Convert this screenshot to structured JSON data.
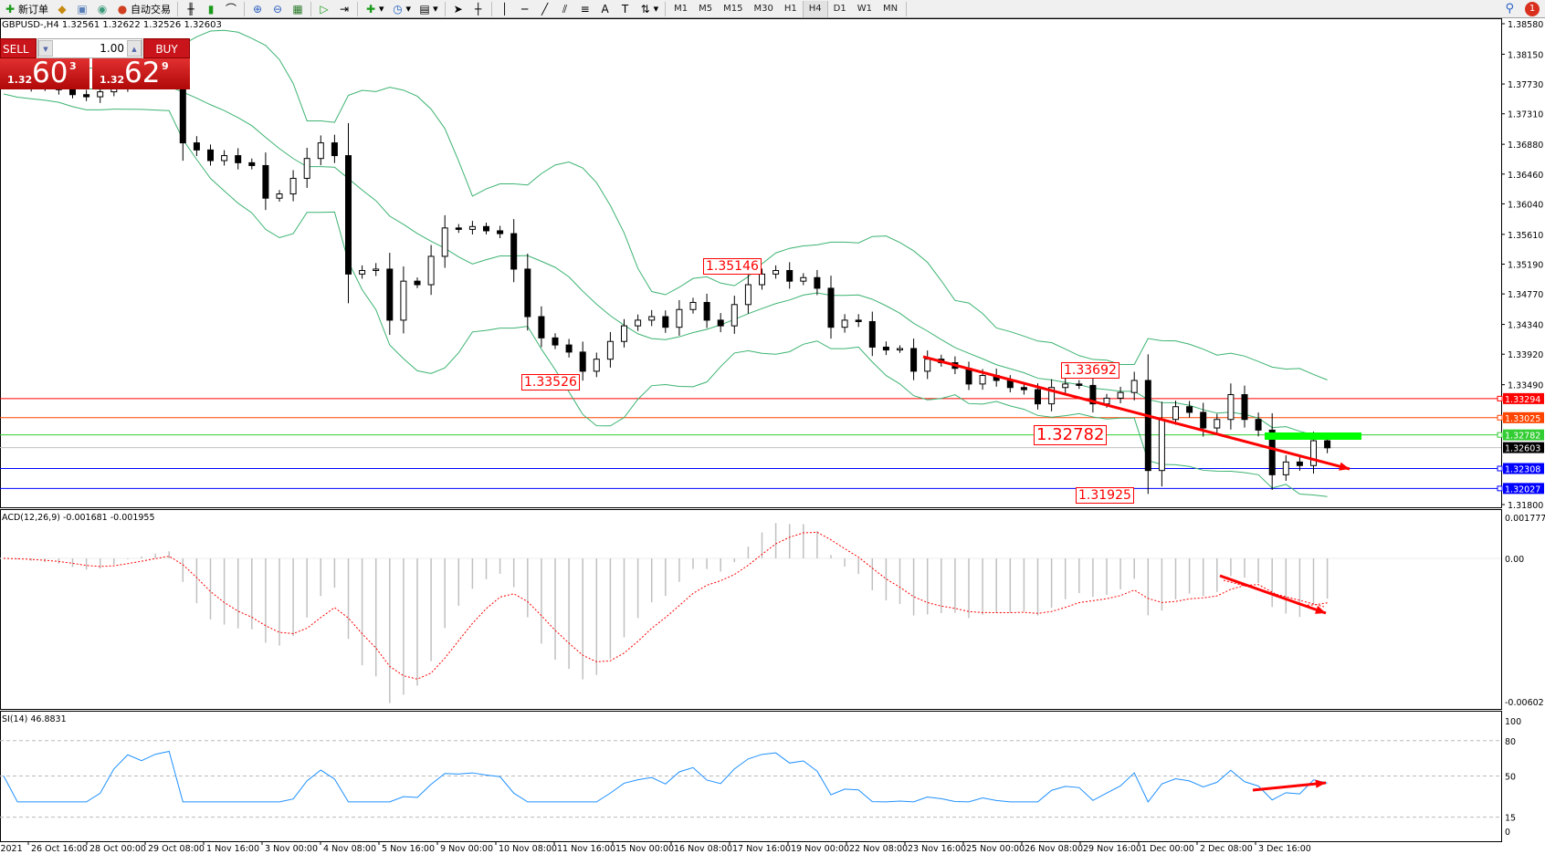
{
  "toolbar": {
    "new_order": "新订单",
    "auto_trading": "自动交易",
    "timeframes": [
      "M1",
      "M5",
      "M15",
      "M30",
      "H1",
      "H4",
      "D1",
      "W1",
      "MN"
    ],
    "active_timeframe": "H4",
    "notification_count": "1"
  },
  "chart": {
    "header": "GBPUSD-,H4  1.32561 1.32622 1.32526 1.32603",
    "one_click": {
      "sell_label": "SELL",
      "buy_label": "BUY",
      "lot": "1.00",
      "sell_prefix": "1.32",
      "sell_big": "60",
      "sell_sup": "3",
      "buy_prefix": "1.32",
      "buy_big": "62",
      "buy_sup": "9"
    },
    "price_axis": [
      "1.38580",
      "1.38150",
      "1.37730",
      "1.37310",
      "1.36880",
      "1.36460",
      "1.36040",
      "1.35610",
      "1.35190",
      "1.34770",
      "1.34340",
      "1.33920",
      "1.33490",
      "1.31800"
    ],
    "price_range": [
      1.318,
      1.3858
    ],
    "levels": [
      {
        "price": 1.33294,
        "label": "1.33294",
        "color": "#ff0000"
      },
      {
        "price": 1.33025,
        "label": "1.33025",
        "color": "#ff4500"
      },
      {
        "price": 1.32782,
        "label": "1.32782",
        "color": "#32cd32"
      },
      {
        "price": 1.32603,
        "label": "1.32603",
        "color": "#000000",
        "line": "#c0c0c0"
      },
      {
        "price": 1.32308,
        "label": "1.32308",
        "color": "#0000ff"
      },
      {
        "price": 1.32027,
        "label": "1.32027",
        "color": "#0000ff"
      }
    ],
    "annotations": [
      "1.35146",
      "1.33526",
      "1.33692",
      "1.32782",
      "1.31925"
    ],
    "closes": [
      1.3775,
      1.3772,
      1.377,
      1.3768,
      1.3765,
      1.3758,
      1.3755,
      1.3762,
      1.377,
      1.3778,
      1.3776,
      1.378,
      1.3782,
      1.369,
      1.368,
      1.3665,
      1.3672,
      1.3662,
      1.3658,
      1.3612,
      1.3618,
      1.364,
      1.3668,
      1.369,
      1.3672,
      1.3505,
      1.351,
      1.3512,
      1.344,
      1.3495,
      1.349,
      1.353,
      1.357,
      1.3568,
      1.3572,
      1.3566,
      1.3562,
      1.3512,
      1.3445,
      1.3415,
      1.3405,
      1.3395,
      1.3368,
      1.3385,
      1.341,
      1.3432,
      1.344,
      1.3445,
      1.343,
      1.3455,
      1.3465,
      1.344,
      1.3432,
      1.3462,
      1.349,
      1.3505,
      1.351,
      1.3495,
      1.35,
      1.3485,
      1.343,
      1.344,
      1.3438,
      1.3402,
      1.3398,
      1.34,
      1.3368,
      1.3385,
      1.338,
      1.3372,
      1.335,
      1.3362,
      1.3355,
      1.3345,
      1.3342,
      1.3322,
      1.3345,
      1.335,
      1.3348,
      1.3322,
      1.333,
      1.3338,
      1.3355,
      1.3228,
      1.33,
      1.3318,
      1.331,
      1.3288,
      1.33,
      1.3335,
      1.33,
      1.3285,
      1.3222,
      1.324,
      1.3235,
      1.327,
      1.326
    ],
    "colors": {
      "bands": "#3cb371",
      "trend": "#ff0000",
      "bull": "#ffffff",
      "bear": "#000000",
      "zone": "#00ff00"
    }
  },
  "macd": {
    "label": "ACD(12,26,9) -0.001681 -0.001955",
    "axis": [
      "0.001777",
      "0.00",
      "-0.00602"
    ],
    "hist_color": "#c0c0c0",
    "signal_color": "#ff0000"
  },
  "rsi": {
    "label": "SI(14) 46.8831",
    "axis": [
      "100",
      "80",
      "50",
      "15",
      "0"
    ],
    "color": "#1e90ff"
  },
  "time_axis": [
    "Oct 2021",
    "26 Oct 16:00",
    "28 Oct 00:00",
    "29 Oct 08:00",
    "1 Nov 16:00",
    "3 Nov 00:00",
    "4 Nov 08:00",
    "5 Nov 16:00",
    "9 Nov 00:00",
    "10 Nov 08:00",
    "11 Nov 16:00",
    "15 Nov 00:00",
    "16 Nov 08:00",
    "17 Nov 16:00",
    "19 Nov 00:00",
    "22 Nov 08:00",
    "23 Nov 16:00",
    "25 Nov 00:00",
    "26 Nov 08:00",
    "29 Nov 16:00",
    "1 Dec 00:00",
    "2 Dec 08:00",
    "3 Dec 16:00"
  ]
}
